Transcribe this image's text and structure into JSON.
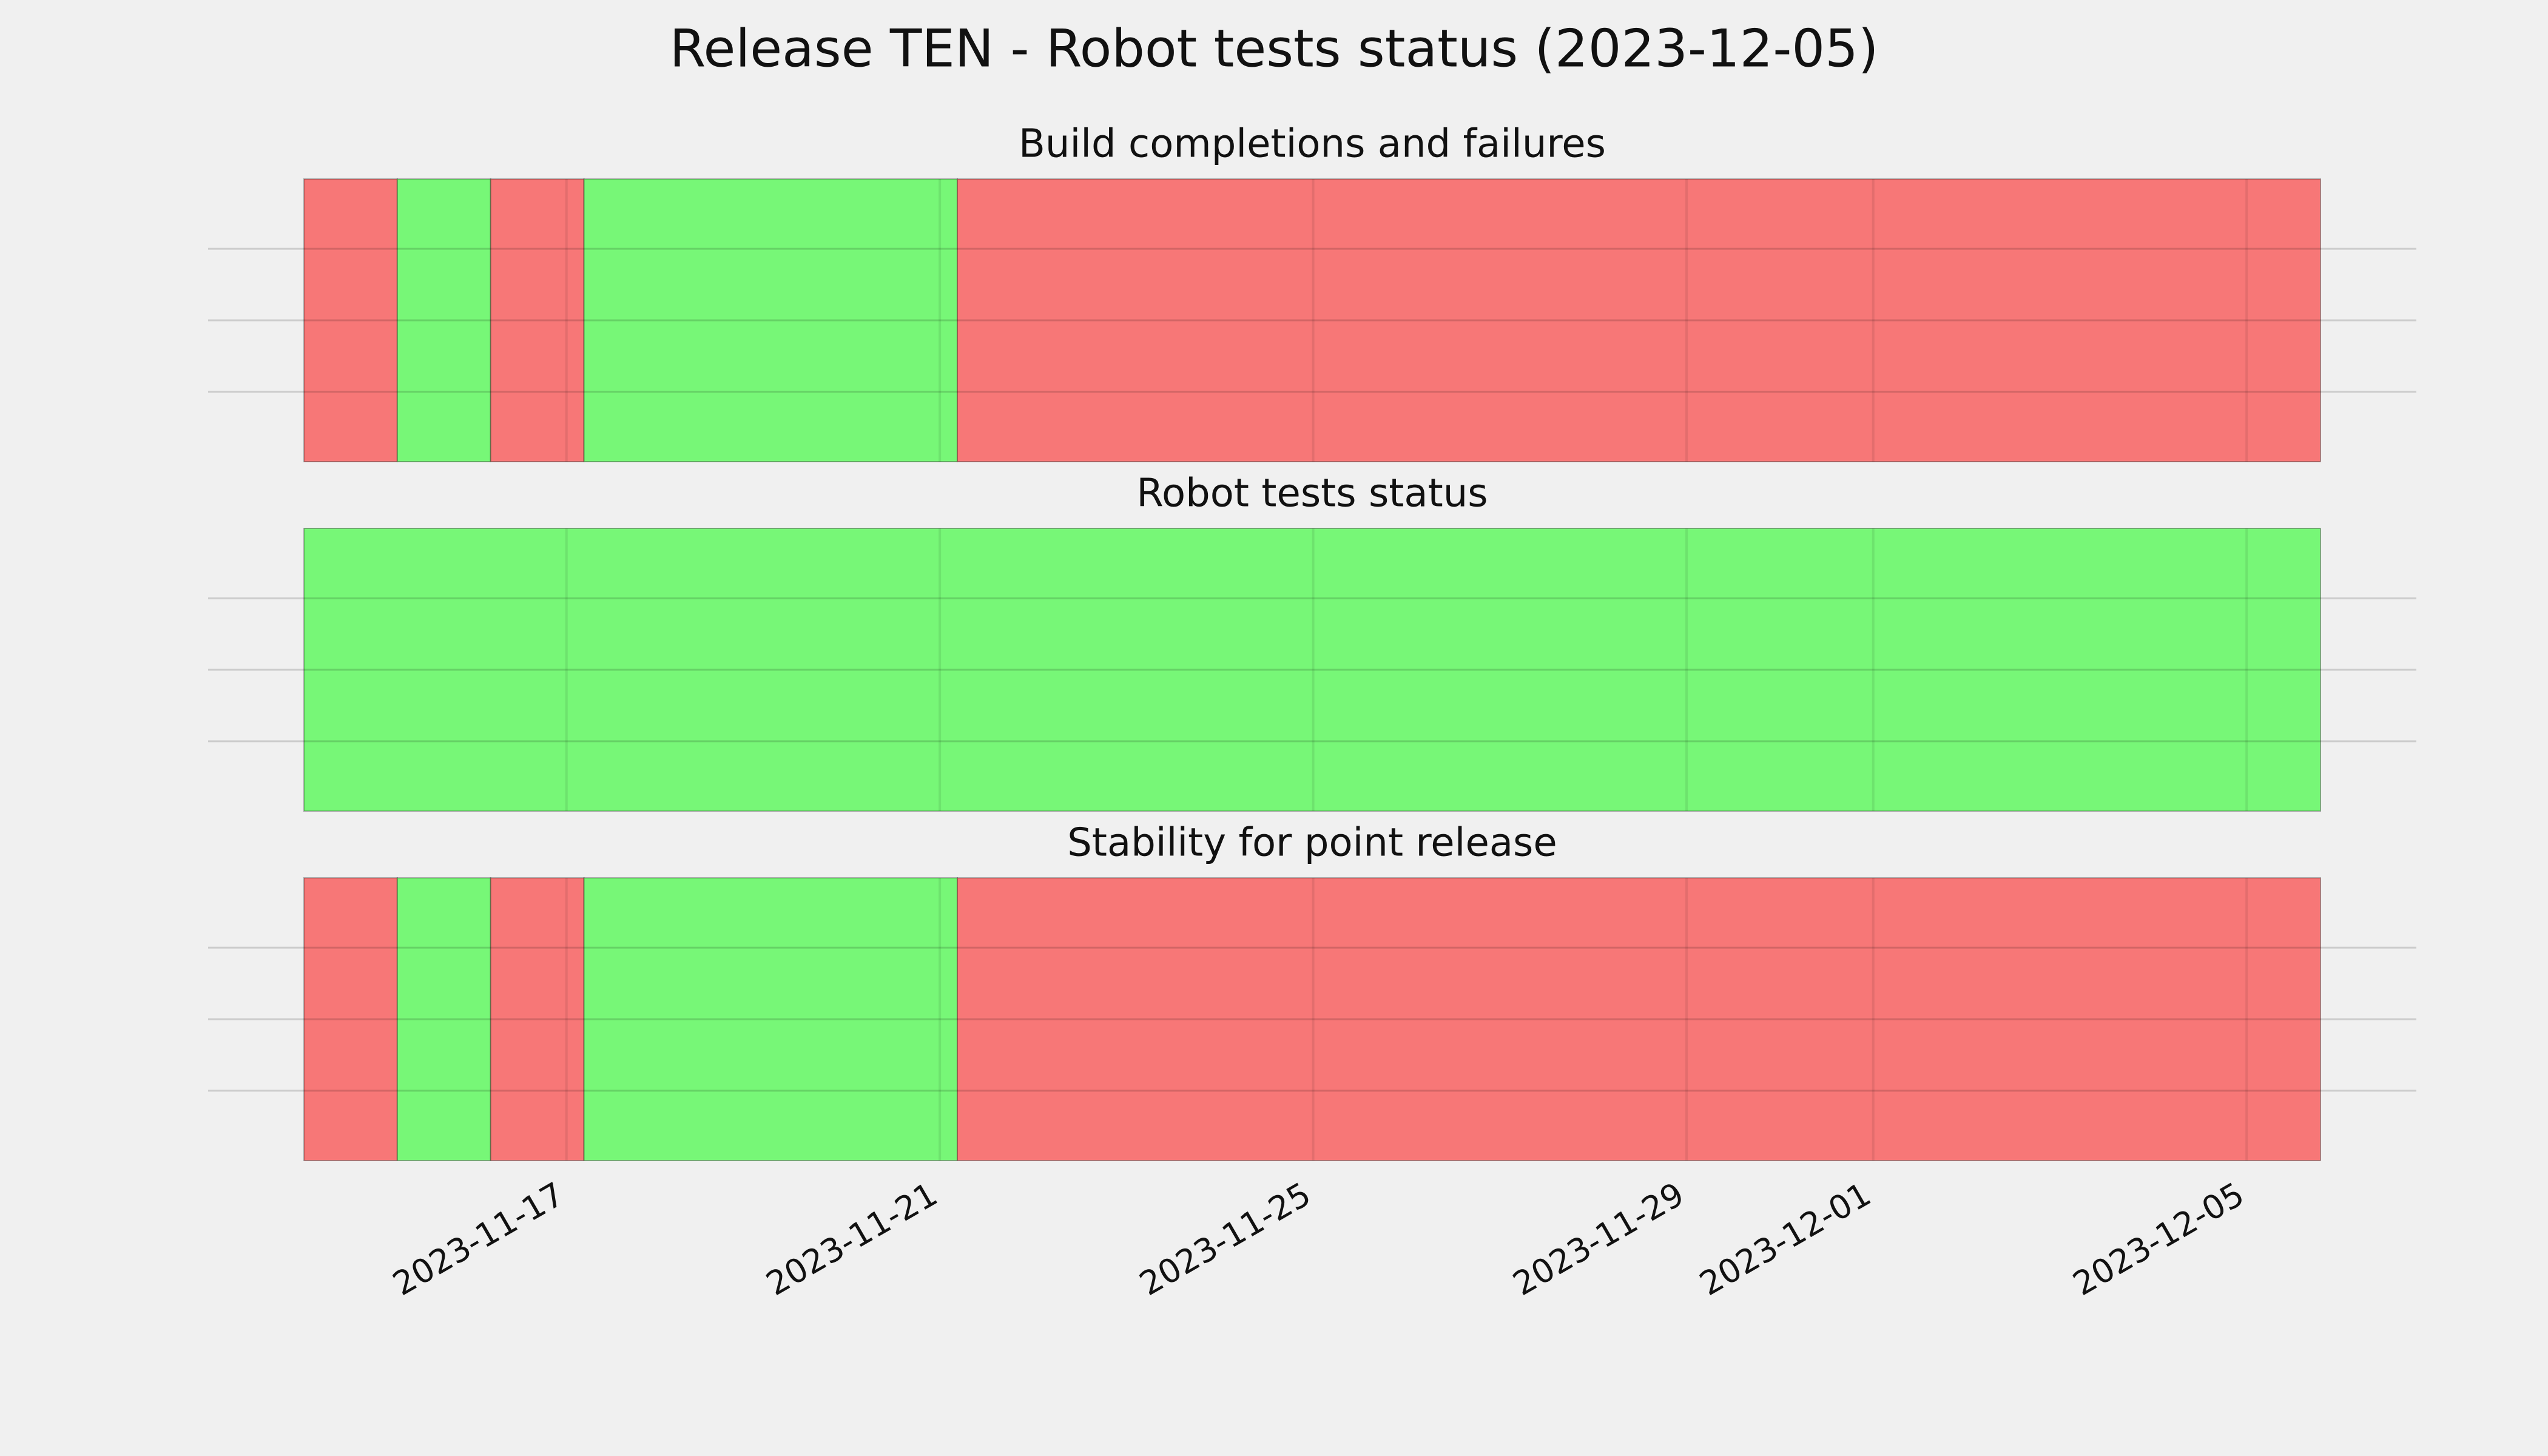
{
  "chart_data": {
    "type": "timeline",
    "title": "Release TEN - Robot tests status (2023-12-05)",
    "xlim": [
      "2023-11-14T04:30",
      "2023-12-05T19:00"
    ],
    "xticks": [
      "2023-11-17",
      "2023-11-21",
      "2023-11-25",
      "2023-11-29",
      "2023-12-01",
      "2023-12-05"
    ],
    "grid": true,
    "panels": [
      {
        "title": "Build completions and failures",
        "segments": [
          {
            "start": "2023-11-14T04:30",
            "end": "2023-11-15T04:30",
            "color": "#f77777"
          },
          {
            "start": "2023-11-15T04:30",
            "end": "2023-11-16T04:30",
            "color": "#77f777"
          },
          {
            "start": "2023-11-16T04:30",
            "end": "2023-11-17T04:30",
            "color": "#f77777"
          },
          {
            "start": "2023-11-17T04:30",
            "end": "2023-11-21T04:30",
            "color": "#77f777"
          },
          {
            "start": "2023-11-21T04:30",
            "end": "2023-12-05T19:00",
            "color": "#f77777"
          }
        ]
      },
      {
        "title": "Robot tests status",
        "segments": [
          {
            "start": "2023-11-14T04:30",
            "end": "2023-12-05T19:00",
            "color": "#77f777"
          }
        ]
      },
      {
        "title": "Stability for point release",
        "segments": [
          {
            "start": "2023-11-14T04:30",
            "end": "2023-11-15T04:30",
            "color": "#f77777"
          },
          {
            "start": "2023-11-15T04:30",
            "end": "2023-11-16T04:30",
            "color": "#77f777"
          },
          {
            "start": "2023-11-16T04:30",
            "end": "2023-11-17T04:30",
            "color": "#f77777"
          },
          {
            "start": "2023-11-17T04:30",
            "end": "2023-11-21T04:30",
            "color": "#77f777"
          },
          {
            "start": "2023-11-21T04:30",
            "end": "2023-12-05T19:00",
            "color": "#f77777"
          }
        ]
      }
    ]
  }
}
